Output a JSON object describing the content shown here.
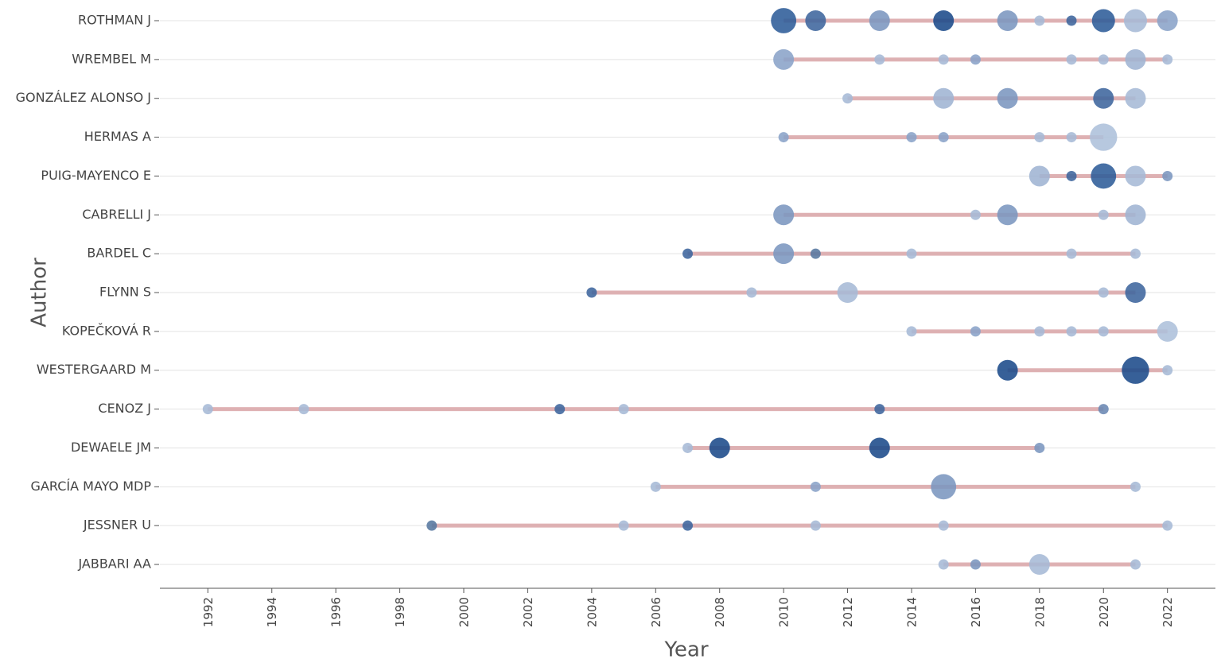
{
  "chart_data": {
    "type": "bubble-timeline",
    "x_label": "Year",
    "y_label": "Author",
    "xlim": [
      1990.5,
      2023.5
    ],
    "xticks": [
      1992,
      1994,
      1996,
      1998,
      2000,
      2002,
      2004,
      2006,
      2008,
      2010,
      2012,
      2014,
      2016,
      2018,
      2020,
      2022
    ],
    "grid": true,
    "line_color": "#d9a4a7",
    "categories": [
      "ROTHMAN J",
      "WREMBEL M",
      "GONZÁLEZ ALONSO J",
      "HERMAS A",
      "PUIG-MAYENCO E",
      "CABRELLI J",
      "BARDEL C",
      "FLYNN S",
      "KOPEČKOVÁ R",
      "WESTERGAARD M",
      "CENOZ J",
      "DEWAELE JM",
      "GARCÍA MAYO MDP",
      "JESSNER U",
      "JABBARI AA"
    ],
    "points": [
      {
        "x": [
          2010,
          2011,
          2013,
          2015,
          2017,
          2018,
          2019,
          2020,
          2021,
          2022
        ],
        "sizes": [
          6,
          4,
          4,
          4,
          4,
          1,
          1,
          5,
          5,
          4
        ],
        "colors": [
          "#2d5c98",
          "#3d659d",
          "#7b96bf",
          "#1b4a8a",
          "#7b96bf",
          "#a6b9d6",
          "#3d659d",
          "#2d5c98",
          "#a6b9d6",
          "#8aa3c8"
        ]
      },
      {
        "x": [
          2010,
          2013,
          2015,
          2016,
          2019,
          2020,
          2021,
          2022
        ],
        "sizes": [
          4,
          1,
          1,
          1,
          1,
          1,
          4,
          1
        ],
        "colors": [
          "#8aa3c8",
          "#a6b9d6",
          "#a6b9d6",
          "#8aa3c8",
          "#a6b9d6",
          "#a6b9d6",
          "#9fb4d3",
          "#a6b9d6"
        ]
      },
      {
        "x": [
          2012,
          2015,
          2017,
          2020,
          2021
        ],
        "sizes": [
          1,
          4,
          4,
          4,
          4
        ],
        "colors": [
          "#a6b9d6",
          "#9fb4d3",
          "#7b96bf",
          "#3d659d",
          "#a6b9d6"
        ]
      },
      {
        "x": [
          2010,
          2014,
          2015,
          2018,
          2019,
          2020
        ],
        "sizes": [
          1,
          1,
          1,
          1,
          1,
          7
        ],
        "colors": [
          "#8aa3c8",
          "#8aa3c8",
          "#8aa3c8",
          "#a6b9d6",
          "#a6b9d6",
          "#adc0db"
        ]
      },
      {
        "x": [
          2018,
          2019,
          2020,
          2021,
          2022
        ],
        "sizes": [
          4,
          1,
          6,
          4,
          1
        ],
        "colors": [
          "#9fb4d3",
          "#3d659d",
          "#2d5c98",
          "#a6b9d6",
          "#7b96bf"
        ]
      },
      {
        "x": [
          2010,
          2016,
          2017,
          2020,
          2021
        ],
        "sizes": [
          4,
          1,
          4,
          1,
          4
        ],
        "colors": [
          "#7b96bf",
          "#a6b9d6",
          "#7b96bf",
          "#a6b9d6",
          "#9fb4d3"
        ]
      },
      {
        "x": [
          2007,
          2010,
          2011,
          2014,
          2019,
          2021
        ],
        "sizes": [
          1,
          4,
          1,
          1,
          1,
          1
        ],
        "colors": [
          "#3d659d",
          "#7b96bf",
          "#56779f",
          "#a6b9d6",
          "#a6b9d6",
          "#a6b9d6"
        ]
      },
      {
        "x": [
          2004,
          2009,
          2012,
          2020,
          2021
        ],
        "sizes": [
          1,
          1,
          4,
          1,
          4
        ],
        "colors": [
          "#3d659d",
          "#a6b9d6",
          "#a6b9d6",
          "#a6b9d6",
          "#3d659d"
        ]
      },
      {
        "x": [
          2014,
          2016,
          2018,
          2019,
          2020,
          2022
        ],
        "sizes": [
          1,
          1,
          1,
          1,
          1,
          4
        ],
        "colors": [
          "#a6b9d6",
          "#8aa3c8",
          "#a6b9d6",
          "#a6b9d6",
          "#a6b9d6",
          "#adc0db"
        ]
      },
      {
        "x": [
          2017,
          2021,
          2022
        ],
        "sizes": [
          4,
          7,
          1
        ],
        "colors": [
          "#1b4a8a",
          "#1b4a8a",
          "#a6b9d6"
        ]
      },
      {
        "x": [
          1992,
          1995,
          2003,
          2005,
          2013,
          2020
        ],
        "sizes": [
          1,
          1,
          1,
          1,
          1,
          1
        ],
        "colors": [
          "#a6b9d6",
          "#a6b9d6",
          "#3d659d",
          "#a6b9d6",
          "#3d659d",
          "#6a88b3"
        ]
      },
      {
        "x": [
          2007,
          2008,
          2013,
          2018
        ],
        "sizes": [
          1,
          4,
          4,
          1
        ],
        "colors": [
          "#a6b9d6",
          "#1b4a8a",
          "#1b4a8a",
          "#7b96bf"
        ]
      },
      {
        "x": [
          2006,
          2011,
          2015,
          2021
        ],
        "sizes": [
          1,
          1,
          6,
          1
        ],
        "colors": [
          "#a6b9d6",
          "#8aa3c8",
          "#7b96bf",
          "#a6b9d6"
        ]
      },
      {
        "x": [
          1999,
          2005,
          2007,
          2011,
          2015,
          2022
        ],
        "sizes": [
          1,
          1,
          1,
          1,
          1,
          1
        ],
        "colors": [
          "#56779f",
          "#a6b9d6",
          "#3d659d",
          "#a6b9d6",
          "#a6b9d6",
          "#a6b9d6"
        ]
      },
      {
        "x": [
          2015,
          2016,
          2018,
          2021
        ],
        "sizes": [
          1,
          1,
          4,
          1
        ],
        "colors": [
          "#a6b9d6",
          "#7b96bf",
          "#a6b9d6",
          "#a6b9d6"
        ]
      }
    ]
  }
}
